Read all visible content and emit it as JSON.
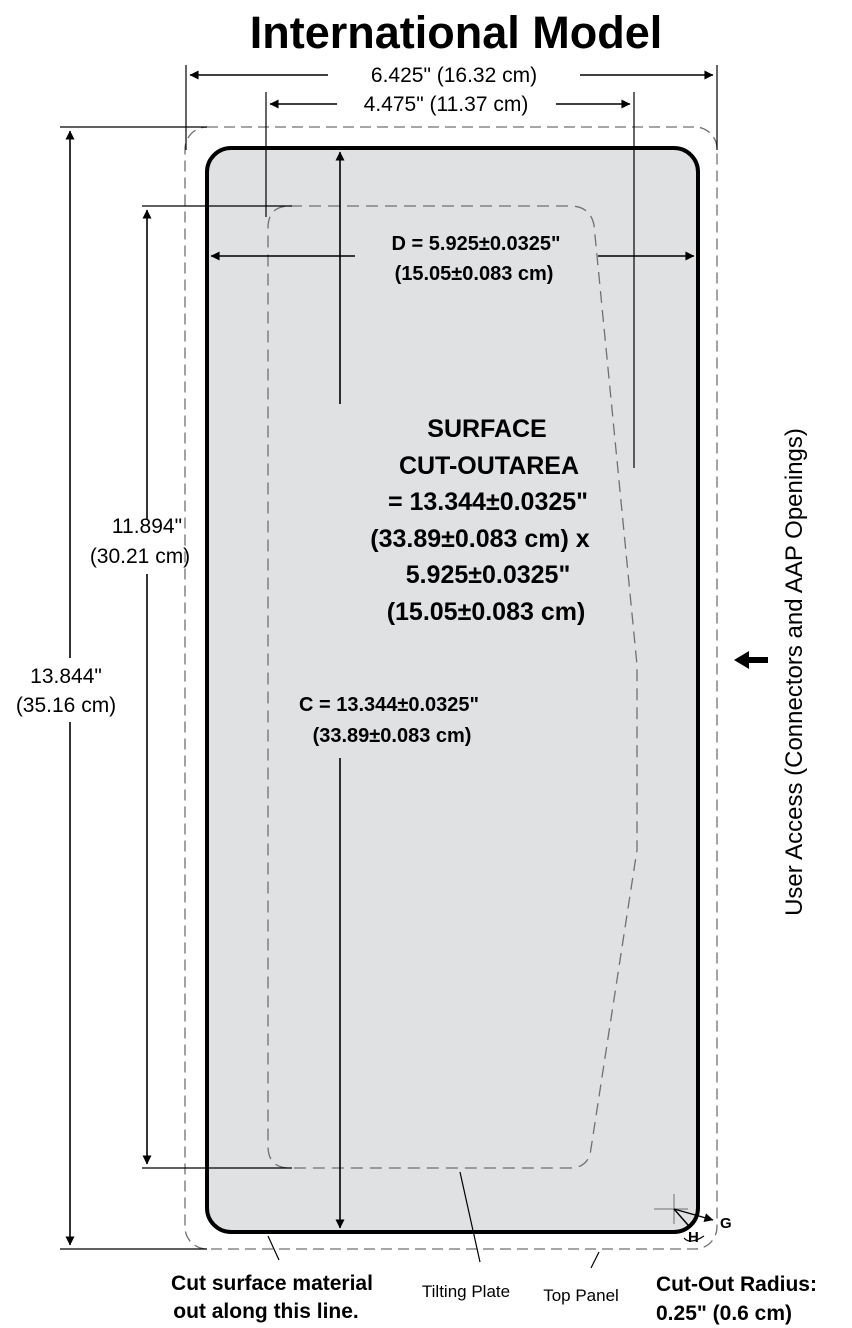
{
  "title": "International Model",
  "dimensions": {
    "overall_width": "6.425\" (16.32 cm)",
    "inner_width": "4.475\" (11.37 cm)",
    "d_line1": "D = 5.925",
    "d_line1_tol": "0.0325\"",
    "d_line2": "(15.05",
    "d_line2_tol": "0.083 cm)",
    "height_inner_line1": "11.894\"",
    "height_inner_line2": "(30.21 cm)",
    "height_outer_line1": "13.844\"",
    "height_outer_line2": "(35.16 cm)",
    "c_line1": "C = 13.344",
    "c_line1_tol": "0.0325\"",
    "c_line2": "(33.89",
    "c_line2_tol": "0.083 cm)"
  },
  "surface_area": {
    "line1": "SURFACE",
    "line2": "CUT-OUTAREA",
    "line3a": "= 13.344",
    "line3b": "0.0325\"",
    "line4a": "(33.89",
    "line4b": "0.083 cm) x",
    "line5a": "5.925",
    "line5b": "0.0325\"",
    "line6a": "(15.05",
    "line6b": "0.083 cm)"
  },
  "plus_minus": "±",
  "side_label": "User Access (Connectors and AAP Openings)",
  "corner_labels": {
    "g": "G",
    "h": "H"
  },
  "callouts": {
    "cut_line1": "Cut surface material",
    "cut_line2": "out along this line.",
    "tilting_plate": "Tilting Plate",
    "top_panel": "Top Panel",
    "radius_line1": "Cut-Out Radius:",
    "radius_line2": "0.25\"  (0.6 cm)"
  },
  "colors": {
    "cutout_fill": "#e0e1e3",
    "outline": "#000000",
    "dashed": "#707070"
  }
}
